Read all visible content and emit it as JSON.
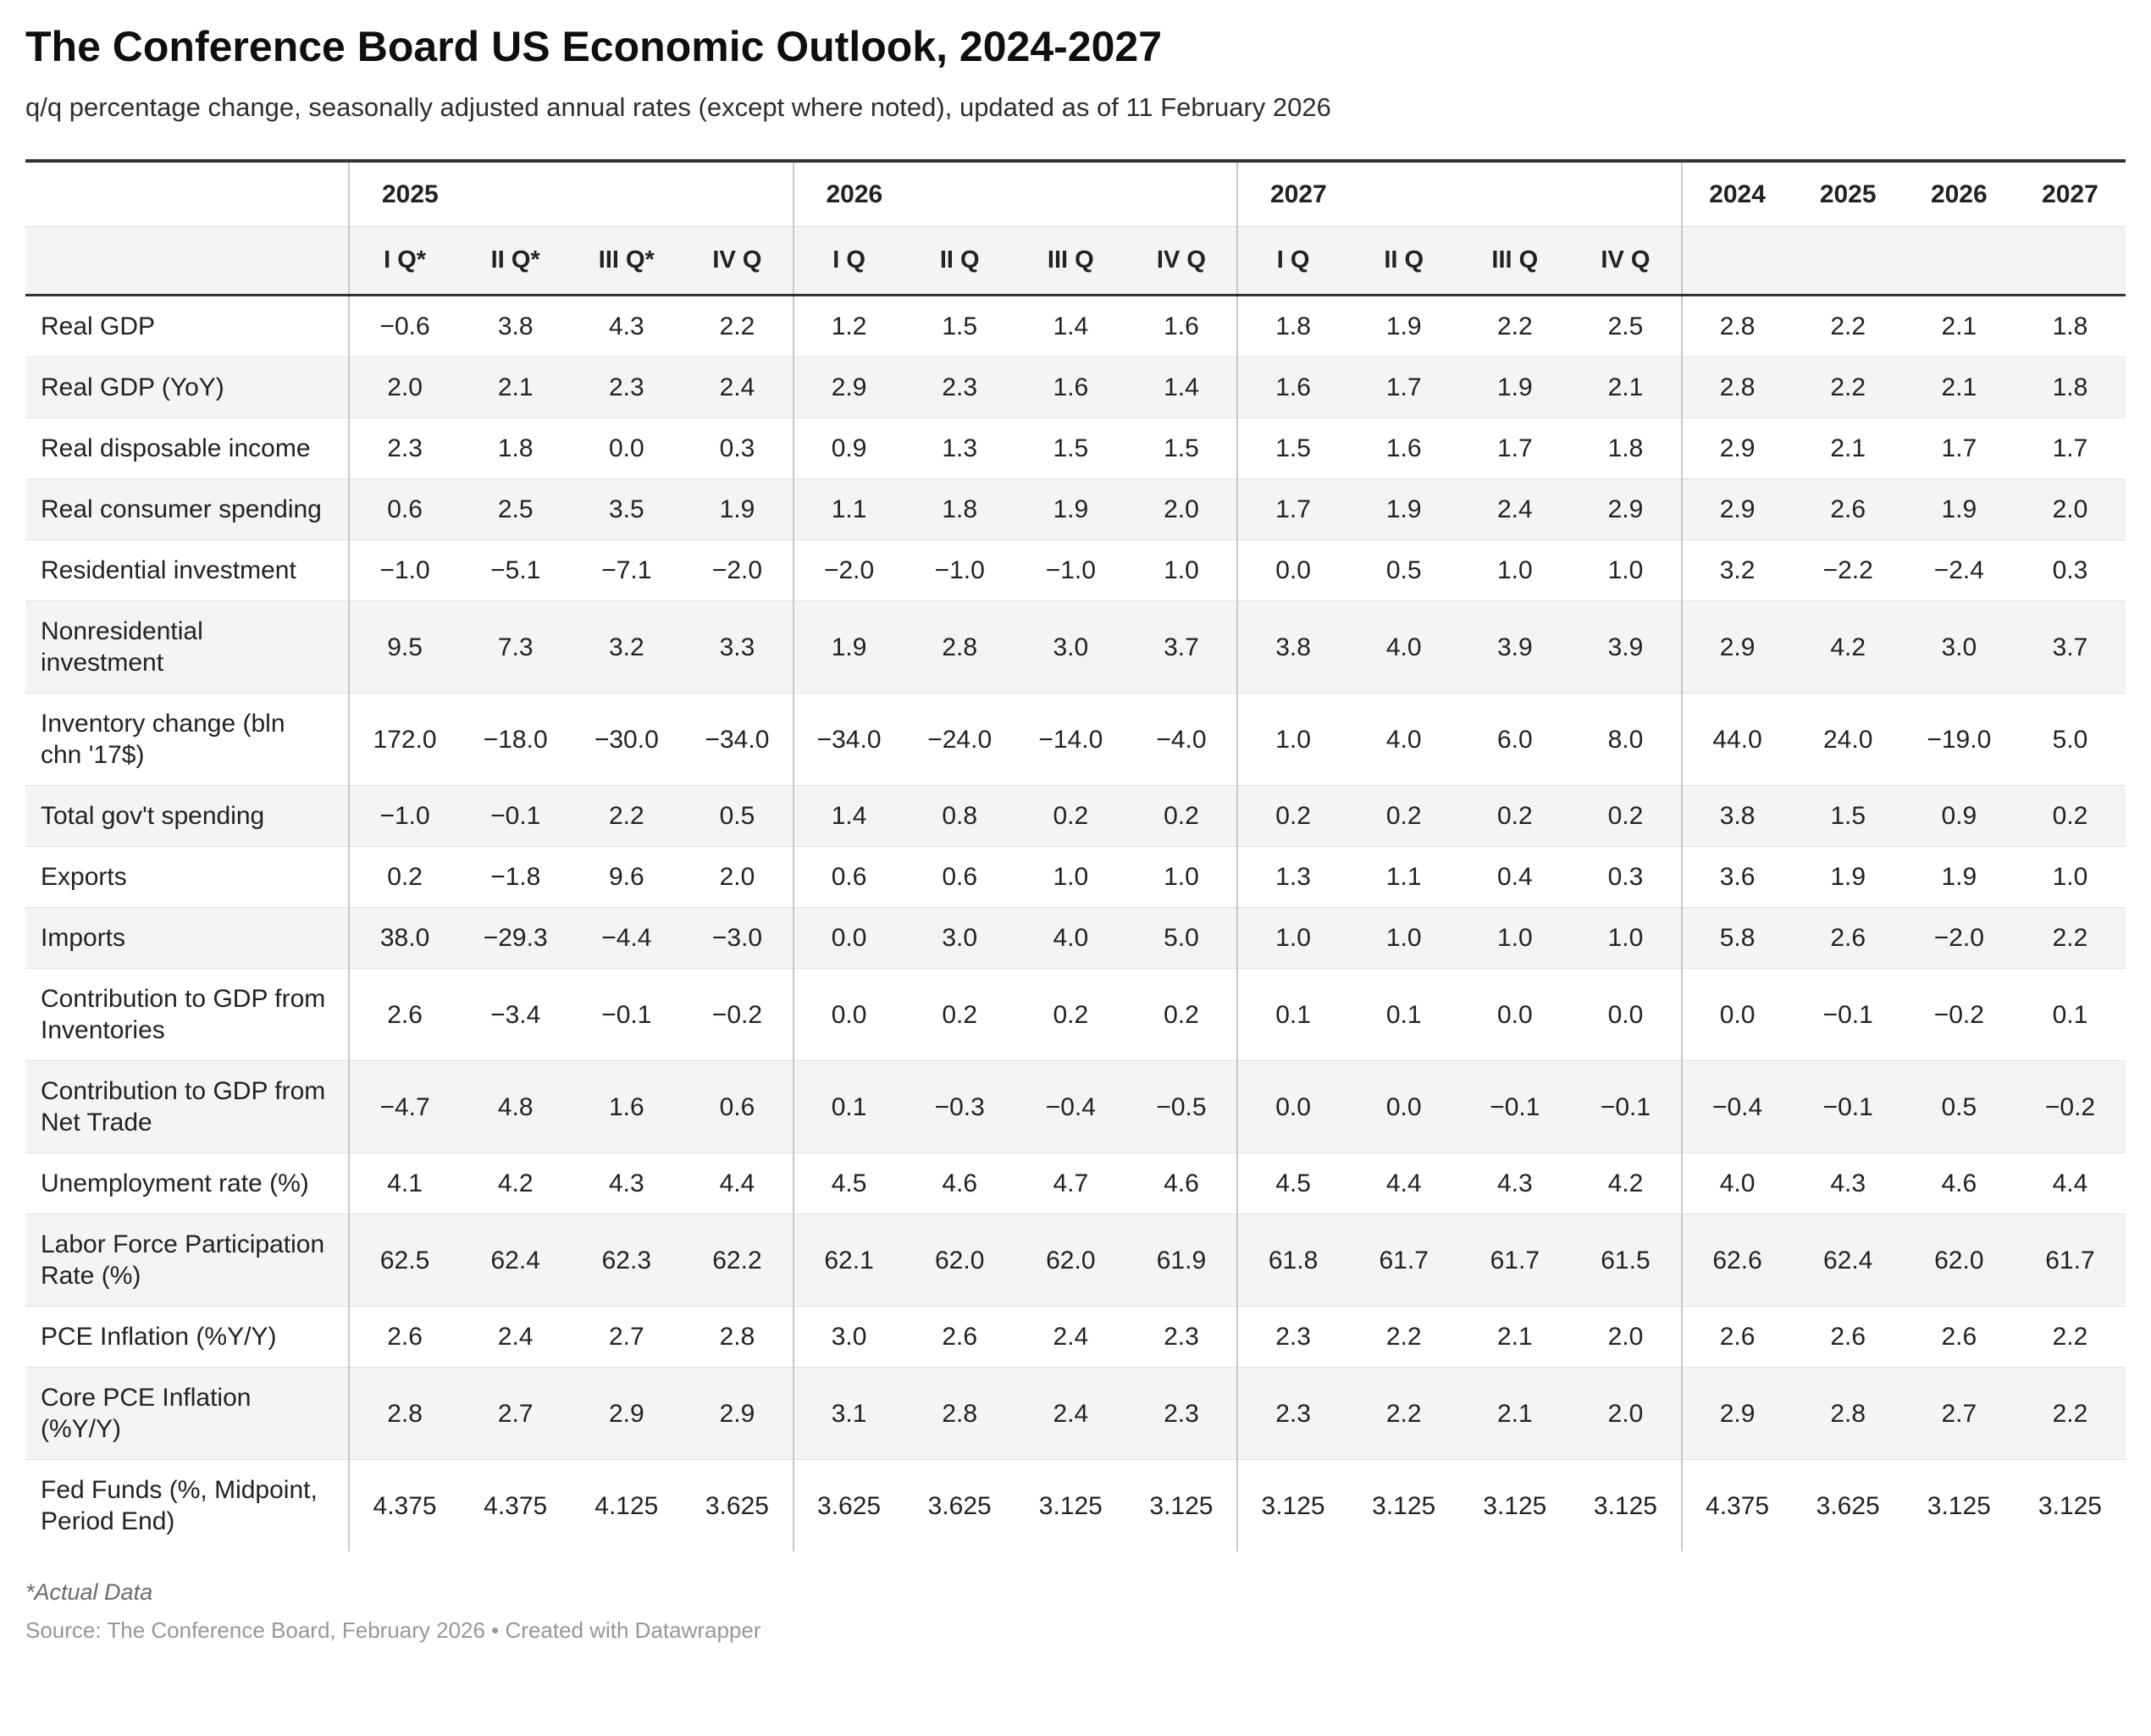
{
  "header": {
    "title": "The Conference Board US Economic Outlook, 2024-2027",
    "subtitle": "q/q percentage change, seasonally adjusted annual rates (except where noted), updated as of 11 February 2026"
  },
  "footer": {
    "footnote": "*Actual Data",
    "source": "Source: The Conference Board, February 2026 • Created with Datawrapper"
  },
  "chart_data": {
    "type": "table",
    "title": "The Conference Board US Economic Outlook, 2024-2027",
    "subtitle": "q/q percentage change, seasonally adjusted annual rates (except where noted), updated as of 11 February 2026",
    "top_header": [
      {
        "label": "2025",
        "span": 4,
        "align": "left"
      },
      {
        "label": "2026",
        "span": 4,
        "align": "left"
      },
      {
        "label": "2027",
        "span": 4,
        "align": "left"
      },
      {
        "label": "2024",
        "span": 1,
        "align": "center"
      },
      {
        "label": "2025",
        "span": 1,
        "align": "center"
      },
      {
        "label": "2026",
        "span": 1,
        "align": "center"
      },
      {
        "label": "2027",
        "span": 1,
        "align": "center"
      }
    ],
    "sub_header": [
      "I Q*",
      "II Q*",
      "III Q*",
      "IV Q",
      "I Q",
      "II Q",
      "III Q",
      "IV Q",
      "I Q",
      "II Q",
      "III Q",
      "IV Q",
      "",
      "",
      "",
      ""
    ],
    "rows": [
      {
        "label": "Real GDP",
        "values": [
          "−0.6",
          "3.8",
          "4.3",
          "2.2",
          "1.2",
          "1.5",
          "1.4",
          "1.6",
          "1.8",
          "1.9",
          "2.2",
          "2.5",
          "2.8",
          "2.2",
          "2.1",
          "1.8"
        ]
      },
      {
        "label": "Real GDP (YoY)",
        "values": [
          "2.0",
          "2.1",
          "2.3",
          "2.4",
          "2.9",
          "2.3",
          "1.6",
          "1.4",
          "1.6",
          "1.7",
          "1.9",
          "2.1",
          "2.8",
          "2.2",
          "2.1",
          "1.8"
        ]
      },
      {
        "label": "Real disposable income",
        "values": [
          "2.3",
          "1.8",
          "0.0",
          "0.3",
          "0.9",
          "1.3",
          "1.5",
          "1.5",
          "1.5",
          "1.6",
          "1.7",
          "1.8",
          "2.9",
          "2.1",
          "1.7",
          "1.7"
        ]
      },
      {
        "label": "Real consumer spending",
        "values": [
          "0.6",
          "2.5",
          "3.5",
          "1.9",
          "1.1",
          "1.8",
          "1.9",
          "2.0",
          "1.7",
          "1.9",
          "2.4",
          "2.9",
          "2.9",
          "2.6",
          "1.9",
          "2.0"
        ]
      },
      {
        "label": "Residential investment",
        "values": [
          "−1.0",
          "−5.1",
          "−7.1",
          "−2.0",
          "−2.0",
          "−1.0",
          "−1.0",
          "1.0",
          "0.0",
          "0.5",
          "1.0",
          "1.0",
          "3.2",
          "−2.2",
          "−2.4",
          "0.3"
        ]
      },
      {
        "label": "Nonresidential investment",
        "values": [
          "9.5",
          "7.3",
          "3.2",
          "3.3",
          "1.9",
          "2.8",
          "3.0",
          "3.7",
          "3.8",
          "4.0",
          "3.9",
          "3.9",
          "2.9",
          "4.2",
          "3.0",
          "3.7"
        ]
      },
      {
        "label": "Inventory change (bln chn '17$)",
        "values": [
          "172.0",
          "−18.0",
          "−30.0",
          "−34.0",
          "−34.0",
          "−24.0",
          "−14.0",
          "−4.0",
          "1.0",
          "4.0",
          "6.0",
          "8.0",
          "44.0",
          "24.0",
          "−19.0",
          "5.0"
        ]
      },
      {
        "label": "Total gov't spending",
        "values": [
          "−1.0",
          "−0.1",
          "2.2",
          "0.5",
          "1.4",
          "0.8",
          "0.2",
          "0.2",
          "0.2",
          "0.2",
          "0.2",
          "0.2",
          "3.8",
          "1.5",
          "0.9",
          "0.2"
        ]
      },
      {
        "label": "Exports",
        "values": [
          "0.2",
          "−1.8",
          "9.6",
          "2.0",
          "0.6",
          "0.6",
          "1.0",
          "1.0",
          "1.3",
          "1.1",
          "0.4",
          "0.3",
          "3.6",
          "1.9",
          "1.9",
          "1.0"
        ]
      },
      {
        "label": "Imports",
        "values": [
          "38.0",
          "−29.3",
          "−4.4",
          "−3.0",
          "0.0",
          "3.0",
          "4.0",
          "5.0",
          "1.0",
          "1.0",
          "1.0",
          "1.0",
          "5.8",
          "2.6",
          "−2.0",
          "2.2"
        ]
      },
      {
        "label": "Contribution to GDP from Inventories",
        "values": [
          "2.6",
          "−3.4",
          "−0.1",
          "−0.2",
          "0.0",
          "0.2",
          "0.2",
          "0.2",
          "0.1",
          "0.1",
          "0.0",
          "0.0",
          "0.0",
          "−0.1",
          "−0.2",
          "0.1"
        ]
      },
      {
        "label": "Contribution to GDP from Net Trade",
        "values": [
          "−4.7",
          "4.8",
          "1.6",
          "0.6",
          "0.1",
          "−0.3",
          "−0.4",
          "−0.5",
          "0.0",
          "0.0",
          "−0.1",
          "−0.1",
          "−0.4",
          "−0.1",
          "0.5",
          "−0.2"
        ]
      },
      {
        "label": "Unemployment rate (%)",
        "values": [
          "4.1",
          "4.2",
          "4.3",
          "4.4",
          "4.5",
          "4.6",
          "4.7",
          "4.6",
          "4.5",
          "4.4",
          "4.3",
          "4.2",
          "4.0",
          "4.3",
          "4.6",
          "4.4"
        ]
      },
      {
        "label": "Labor Force Participation Rate (%)",
        "values": [
          "62.5",
          "62.4",
          "62.3",
          "62.2",
          "62.1",
          "62.0",
          "62.0",
          "61.9",
          "61.8",
          "61.7",
          "61.7",
          "61.5",
          "62.6",
          "62.4",
          "62.0",
          "61.7"
        ]
      },
      {
        "label": "PCE Inflation (%Y/Y)",
        "values": [
          "2.6",
          "2.4",
          "2.7",
          "2.8",
          "3.0",
          "2.6",
          "2.4",
          "2.3",
          "2.3",
          "2.2",
          "2.1",
          "2.0",
          "2.6",
          "2.6",
          "2.6",
          "2.2"
        ]
      },
      {
        "label": "Core PCE Inflation (%Y/Y)",
        "values": [
          "2.8",
          "2.7",
          "2.9",
          "2.9",
          "3.1",
          "2.8",
          "2.4",
          "2.3",
          "2.3",
          "2.2",
          "2.1",
          "2.0",
          "2.9",
          "2.8",
          "2.7",
          "2.2"
        ]
      },
      {
        "label": "Fed Funds (%, Midpoint, Period End)",
        "values": [
          "4.375",
          "4.375",
          "4.125",
          "3.625",
          "3.625",
          "3.625",
          "3.125",
          "3.125",
          "3.125",
          "3.125",
          "3.125",
          "3.125",
          "4.375",
          "3.625",
          "3.125",
          "3.125"
        ]
      }
    ]
  }
}
